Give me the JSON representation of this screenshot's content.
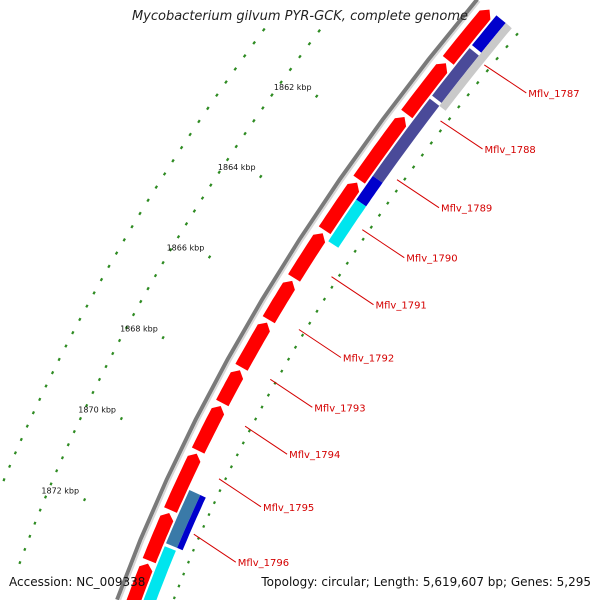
{
  "title": "Mycobacterium gilvum PYR-GCK, complete genome",
  "footer": {
    "accession": "Accession: NC_009338",
    "summary": "Topology: circular; Length: 5,619,607 bp; Genes: 5,295"
  },
  "kbp_labels": [
    "1862 kbp",
    "1864 kbp",
    "1866 kbp",
    "1868 kbp",
    "1870 kbp",
    "1872 kbp"
  ],
  "gene_labels": [
    "Mflv_1787",
    "Mflv_1788",
    "Mflv_1789",
    "Mflv_1790",
    "Mflv_1791",
    "Mflv_1792",
    "Mflv_1793",
    "Mflv_1794",
    "Mflv_1795",
    "Mflv_1796"
  ],
  "colors": {
    "cds_red": "#ff0000",
    "cds_blue": "#0000cc",
    "cds_slate": "#4a4a99",
    "cds_steel": "#3a7aa8",
    "cds_cyan": "#00e5ee",
    "backbone": "#8c8c8c",
    "gc_green": "#2e8b22",
    "label_red": "#d40000"
  }
}
